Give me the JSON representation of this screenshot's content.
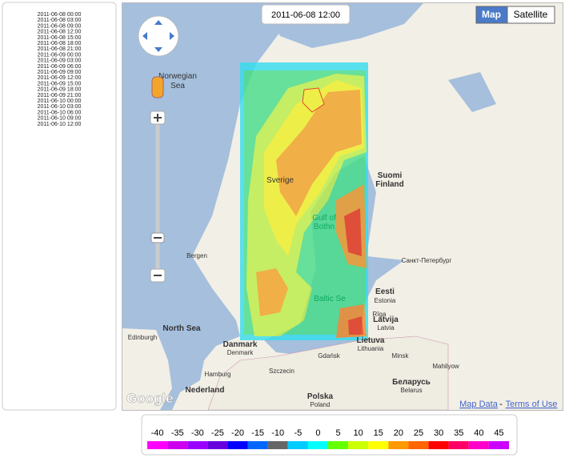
{
  "timestamps": [
    "2011-06-08 00:00",
    "2011-06-08 03:00",
    "2011-06-08 09:00",
    "2011-06-08 12:00",
    "2011-06-08 15:00",
    "2011-06-08 18:00",
    "2011-06-08 21:00",
    "2011-06-09 00:00",
    "2011-06-09 03:00",
    "2011-06-09 06:00",
    "2011-06-09 09:00",
    "2011-06-09 12:00",
    "2011-06-09 15:00",
    "2011-06-09 18:00",
    "2011-06-09 21:00",
    "2011-06-10 00:00",
    "2011-06-10 03:00",
    "2011-06-10 06:00",
    "2011-06-10 09:00",
    "2011-06-10 12:00"
  ],
  "current_time": "2011-06-08 12:00",
  "map_controls": {
    "map": "Map",
    "satellite": "Satellite"
  },
  "map_labels": [
    "Norwegian",
    "Sea",
    "North Sea",
    "Suomi",
    "Finland",
    "Sverige",
    "Gulf of",
    "Bothn",
    "Eesti",
    "Estonia",
    "Latvija",
    "Latvia",
    "Baltic Se",
    "Danmark",
    "Denmark",
    "Polska",
    "Poland",
    "Lietuva",
    "Lithuania",
    "Беларусь",
    "Belarus",
    "Edinburgh",
    "Hamburg",
    "Szczecin",
    "Gdańsk",
    "Minsk",
    "Bergen",
    "Nederland",
    "Rīga",
    "Санкт-Петербург",
    "Mahilyow",
    "Google"
  ],
  "attribution": {
    "map_data": "Map Data",
    "separator": "-",
    "terms": "Terms of Use"
  },
  "legend": [
    {
      "value": -40,
      "color": "#ff00ff"
    },
    {
      "value": -35,
      "color": "#cc00ee"
    },
    {
      "value": -30,
      "color": "#9900ff"
    },
    {
      "value": -25,
      "color": "#6600dd"
    },
    {
      "value": -20,
      "color": "#0000ff"
    },
    {
      "value": -15,
      "color": "#0066ff"
    },
    {
      "value": -10,
      "color": "#666666"
    },
    {
      "value": -5,
      "color": "#00ccff"
    },
    {
      "value": 0,
      "color": "#00ffff"
    },
    {
      "value": 5,
      "color": "#66ff00"
    },
    {
      "value": 10,
      "color": "#ccff00"
    },
    {
      "value": 15,
      "color": "#ffff00"
    },
    {
      "value": 20,
      "color": "#ff9900"
    },
    {
      "value": 25,
      "color": "#ff6600"
    },
    {
      "value": 30,
      "color": "#ff0000"
    },
    {
      "value": 35,
      "color": "#ff0066"
    },
    {
      "value": 40,
      "color": "#ff00cc"
    },
    {
      "value": 45,
      "color": "#cc00ff"
    }
  ]
}
